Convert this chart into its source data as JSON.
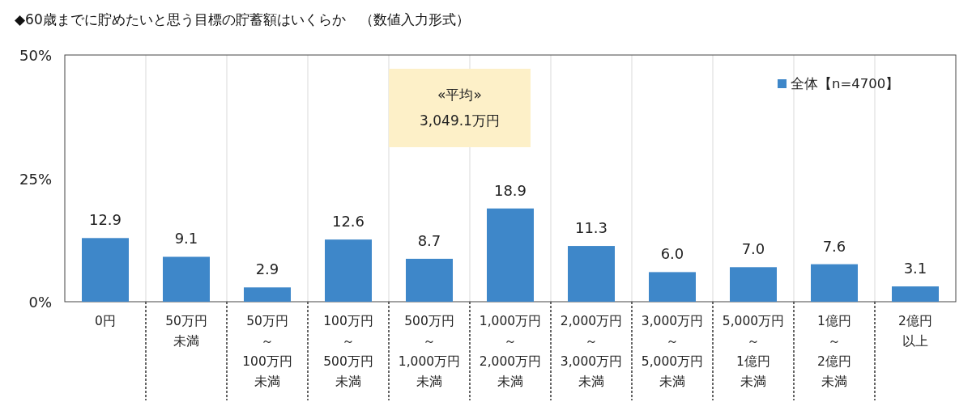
{
  "chart_data": {
    "type": "bar",
    "title": "◆60歳までに貯めたいと思う目標の貯蓄額はいくらか　（数値入力形式）",
    "categories": [
      "0円",
      "50万円未満",
      "50万円～100万円未満",
      "100万円～500万円未満",
      "500万円～1,000万円未満",
      "1,000万円～2,000万円未満",
      "2,000万円～3,000万円未満",
      "3,000万円～5,000万円未満",
      "5,000万円～1億円未満",
      "1億円～2億円未満",
      "2億円以上"
    ],
    "series": [
      {
        "name": "全体【n=4700】",
        "color": "#3e87c9",
        "values": [
          12.9,
          9.1,
          2.9,
          12.6,
          8.7,
          18.9,
          11.3,
          6.0,
          7.0,
          7.6,
          3.1
        ],
        "value_labels": [
          "12.9",
          "9.1",
          "2.9",
          "12.6",
          "8.7",
          "18.9",
          "11.3",
          "6.0",
          "7.0",
          "7.6",
          "3.1"
        ]
      }
    ],
    "ylim": [
      0,
      50
    ],
    "yticks": [
      {
        "value": 0,
        "label": "0%"
      },
      {
        "value": 25,
        "label": "25%"
      },
      {
        "value": 50,
        "label": "50%"
      }
    ],
    "legend": "top right",
    "annotations": [
      "«平均»\n3,049.1万円"
    ]
  }
}
